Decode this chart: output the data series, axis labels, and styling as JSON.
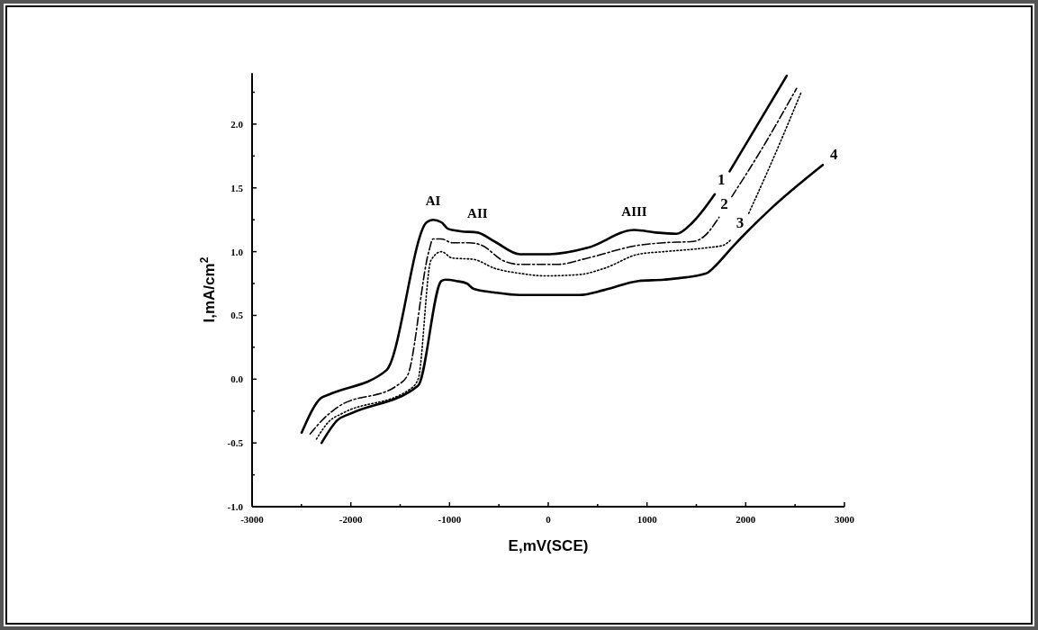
{
  "chart_data": {
    "type": "line",
    "xlabel": "E,mV(SCE)",
    "ylabel": "I,mA/cm$^{2}$",
    "xlim": [
      -3000,
      3000
    ],
    "ylim": [
      -1,
      2.4
    ],
    "xticks": [
      -3000,
      {
        "value": -2500,
        "label": null
      },
      -2000,
      {
        "value": -1500,
        "label": null
      },
      -1000,
      {
        "value": -500,
        "label": null
      },
      0,
      {
        "value": 500,
        "label": null
      },
      1000,
      {
        "value": 1500,
        "label": null
      },
      2000,
      {
        "value": 2500,
        "label": null
      },
      3000
    ],
    "yticks": [
      {
        "value": -1,
        "label": "-1.0"
      },
      {
        "value": -0.75,
        "label": null
      },
      {
        "value": -0.5,
        "label": "-0.5"
      },
      {
        "value": -0.25,
        "label": null
      },
      {
        "value": 0,
        "label": "0.0"
      },
      {
        "value": 0.25,
        "label": null
      },
      {
        "value": 0.5,
        "label": "0.5"
      },
      {
        "value": 0.75,
        "label": null
      },
      {
        "value": 1,
        "label": "1.0"
      },
      {
        "value": 1.25,
        "label": null
      },
      {
        "value": 1.5,
        "label": "1.5"
      },
      {
        "value": 1.75,
        "label": null
      },
      {
        "value": 2,
        "label": "2.0"
      },
      {
        "value": 2.25,
        "label": null
      }
    ],
    "grid": false,
    "series": [
      {
        "name": "1",
        "color": "#000000",
        "line_style": "solid",
        "x": [
          -2498,
          -2305,
          -2219,
          -1639,
          -1232,
          -1167,
          -1082,
          -1017,
          -888,
          -717,
          -545,
          -288,
          13,
          399,
          871,
          1086,
          1300,
          1450,
          1687,
          1760,
          1837,
          2416
        ],
        "values": [
          -0.42,
          -0.15,
          -0.12,
          0.07,
          1.23,
          1.25,
          1.23,
          1.18,
          1.16,
          1.15,
          1.08,
          0.98,
          0.98,
          1.03,
          1.17,
          1.15,
          1.14,
          1.22,
          1.45,
          null,
          1.63,
          2.38
        ]
      },
      {
        "name": "2",
        "color": "#000000",
        "line_style": "dashed",
        "x": [
          -2412,
          -2262,
          -2133,
          -1532,
          -1425,
          -1210,
          -1167,
          -1082,
          -974,
          -803,
          -674,
          -459,
          -288,
          99,
          399,
          914,
          1172,
          1472,
          1579,
          1730,
          1790,
          1858,
          2159,
          2515
        ],
        "values": [
          -0.43,
          -0.3,
          -0.22,
          -0.05,
          0.03,
          1.0,
          1.1,
          1.1,
          1.07,
          1.07,
          1.05,
          0.93,
          0.9,
          0.9,
          0.95,
          1.05,
          1.07,
          1.08,
          1.12,
          1.27,
          null,
          1.43,
          1.8,
          2.28
        ]
      },
      {
        "name": "3",
        "color": "#000000",
        "line_style": "dotted",
        "x": [
          -2348,
          -2219,
          -2090,
          -1403,
          -1318,
          -1189,
          -1082,
          -974,
          -760,
          -545,
          -288,
          -30,
          313,
          571,
          914,
          1172,
          1601,
          1773,
          1858,
          1950,
          2030,
          2245,
          2562
        ],
        "values": [
          -0.47,
          -0.33,
          -0.27,
          -0.08,
          0.0,
          0.93,
          1.0,
          0.95,
          0.94,
          0.87,
          0.83,
          0.81,
          0.82,
          0.87,
          0.98,
          1.0,
          1.03,
          1.05,
          1.1,
          null,
          1.3,
          1.67,
          2.25
        ]
      },
      {
        "name": "4",
        "color": "#000000",
        "line_style": "solid",
        "x": [
          -2296,
          -2133,
          -2004,
          -1318,
          -1082,
          -1039,
          -931,
          -824,
          -760,
          -545,
          -288,
          313,
          571,
          914,
          1172,
          1601,
          1708,
          1858,
          2245,
          2781
        ],
        "values": [
          -0.5,
          -0.32,
          -0.27,
          -0.05,
          0.77,
          0.78,
          0.77,
          0.75,
          0.71,
          0.68,
          0.66,
          0.66,
          0.7,
          0.77,
          0.78,
          0.83,
          0.9,
          1.03,
          1.33,
          1.68
        ]
      }
    ],
    "annotations": [
      {
        "text": "AI",
        "x": -1167,
        "y": 1.25
      },
      {
        "text": "AII",
        "x": -717,
        "y": 1.15
      },
      {
        "text": "AIII",
        "x": 871,
        "y": 1.17
      }
    ]
  }
}
